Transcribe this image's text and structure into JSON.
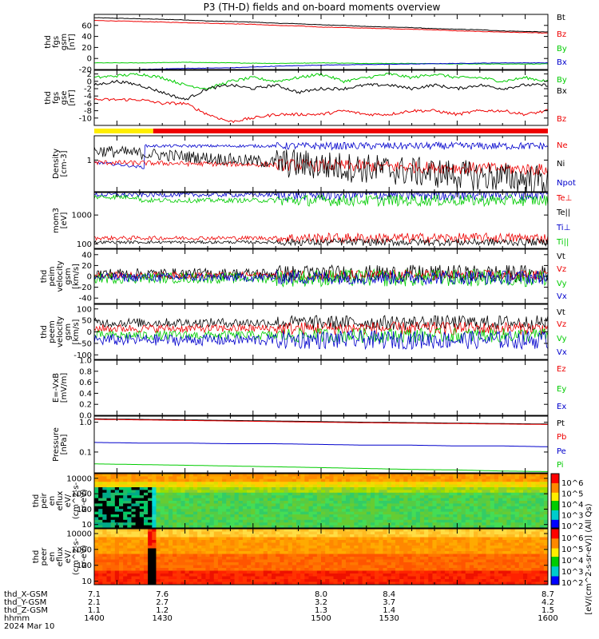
{
  "title": "P3 (TH-D) fields and on-board moments overview",
  "colors": {
    "black": "#000000",
    "red": "#ee0000",
    "green": "#00cc00",
    "blue": "#0000cc",
    "yellow": "#ffee00",
    "barRed": "#ee0000"
  },
  "chart_data": [
    {
      "type": "line",
      "panel": "fgs_gsm",
      "ylabel": [
        "thd",
        "fgs",
        "gsm",
        "[nT]"
      ],
      "ylim": [
        -20,
        80
      ],
      "yticks": [
        "60",
        "40",
        "20",
        "0",
        "-20"
      ],
      "ytick_values": [
        60,
        40,
        20,
        0,
        -20
      ],
      "series": [
        {
          "name": "Bt",
          "color": "#000000",
          "x": [
            1400,
            1410,
            1420,
            1430,
            1440,
            1450,
            1460,
            1470,
            1480,
            1490,
            1500,
            1510,
            1520,
            1530,
            1540,
            1550,
            1560,
            1570,
            1580,
            1590,
            1600
          ],
          "values": [
            74,
            73,
            72,
            71,
            70,
            68,
            67,
            66,
            64,
            63,
            61,
            60,
            58,
            57,
            56,
            54,
            53,
            52,
            50,
            49,
            48
          ]
        },
        {
          "name": "Bz",
          "color": "#ee0000",
          "x": [
            1400,
            1410,
            1420,
            1430,
            1440,
            1450,
            1460,
            1470,
            1480,
            1490,
            1500,
            1510,
            1520,
            1530,
            1540,
            1550,
            1560,
            1570,
            1580,
            1590,
            1600
          ],
          "values": [
            69,
            68,
            67,
            66,
            65,
            64,
            63,
            62,
            60,
            59,
            57,
            56,
            55,
            54,
            53,
            52,
            50,
            49,
            48,
            47,
            46
          ]
        },
        {
          "name": "By",
          "color": "#00cc00",
          "x": [
            1400,
            1420,
            1440,
            1460,
            1480,
            1500,
            1520,
            1540,
            1560,
            1580,
            1600
          ],
          "values": [
            -8,
            -8,
            -7,
            -8,
            -9,
            -8,
            -9,
            -9,
            -10,
            -10,
            -10
          ]
        },
        {
          "name": "Bx",
          "color": "#0000cc",
          "x": [
            1400,
            1420,
            1440,
            1460,
            1480,
            1500,
            1520,
            1540,
            1560,
            1580,
            1600
          ],
          "values": [
            -21,
            -20,
            -18,
            -17,
            -14,
            -12,
            -11,
            -10,
            -9,
            -8,
            -8
          ]
        }
      ]
    },
    {
      "type": "line",
      "panel": "fgs_gse",
      "ylabel": [
        "thd",
        "fgs",
        "gse",
        "[nT]"
      ],
      "ylim": [
        -12,
        3
      ],
      "yticks": [
        "2",
        "0",
        "-2",
        "-4",
        "-6",
        "-8",
        "-10"
      ],
      "ytick_values": [
        2,
        0,
        -2,
        -4,
        -6,
        -8,
        -10
      ],
      "series": [
        {
          "name": "By",
          "color": "#00cc00",
          "x": [
            1400,
            1410,
            1420,
            1430,
            1440,
            1450,
            1460,
            1470,
            1480,
            1490,
            1500,
            1510,
            1520,
            1530,
            1540,
            1550,
            1560,
            1570,
            1580,
            1590,
            1600
          ],
          "values": [
            1,
            1.5,
            2,
            1,
            -1,
            -2,
            0,
            1,
            0,
            1,
            2,
            0,
            1,
            2,
            1,
            2,
            1,
            1,
            0,
            1,
            0
          ]
        },
        {
          "name": "Bx",
          "color": "#000000",
          "x": [
            1400,
            1410,
            1420,
            1430,
            1440,
            1450,
            1460,
            1470,
            1480,
            1490,
            1500,
            1510,
            1520,
            1530,
            1540,
            1550,
            1560,
            1570,
            1580,
            1590,
            1600
          ],
          "values": [
            -1,
            0,
            -1,
            -3,
            -5,
            -2,
            -1,
            -2,
            -1,
            -3,
            -2,
            -2,
            -1,
            -1,
            -2,
            -1,
            -2,
            -1,
            -2,
            -1,
            -1
          ]
        },
        {
          "name": "Bz",
          "color": "#ee0000",
          "x": [
            1400,
            1410,
            1420,
            1430,
            1440,
            1450,
            1460,
            1470,
            1480,
            1490,
            1500,
            1510,
            1520,
            1530,
            1540,
            1550,
            1560,
            1570,
            1580,
            1590,
            1600
          ],
          "values": [
            -5,
            -5,
            -5,
            -6,
            -6,
            -9,
            -11,
            -10,
            -9,
            -9,
            -9,
            -8,
            -9,
            -9,
            -8,
            -8,
            -9,
            -8,
            -8,
            -9,
            -8
          ]
        }
      ]
    },
    {
      "type": "line",
      "panel": "density",
      "ylabel": [
        "Density",
        "[cm-3]"
      ],
      "yscale": "log",
      "yticks": [
        "1"
      ],
      "ytick_values": [
        1
      ],
      "series": [
        {
          "name": "Ne",
          "color": "#ee0000"
        },
        {
          "name": "Ni",
          "color": "#000000"
        },
        {
          "name": "Npot",
          "color": "#0000cc"
        }
      ]
    },
    {
      "type": "line",
      "panel": "temperature",
      "ylabel": [
        "mom3",
        "[eV]"
      ],
      "yscale": "log",
      "yticks": [
        "1000",
        "100"
      ],
      "ytick_values": [
        1000,
        100
      ],
      "series": [
        {
          "name": "Te⊥",
          "color": "#ee0000"
        },
        {
          "name": "Te||",
          "color": "#000000"
        },
        {
          "name": "Ti⊥",
          "color": "#0000cc"
        },
        {
          "name": "Ti||",
          "color": "#00cc00"
        }
      ]
    },
    {
      "type": "line",
      "panel": "peim_velocity",
      "ylabel": [
        "thd",
        "peim",
        "velocity",
        "gsm",
        "[km/s]"
      ],
      "ylim": [
        -50,
        50
      ],
      "yticks": [
        "40",
        "20",
        "0",
        "-20",
        "-40"
      ],
      "ytick_values": [
        40,
        20,
        0,
        -20,
        -40
      ],
      "series": [
        {
          "name": "Vt",
          "color": "#000000"
        },
        {
          "name": "Vz",
          "color": "#ee0000"
        },
        {
          "name": "Vy",
          "color": "#00cc00"
        },
        {
          "name": "Vx",
          "color": "#0000cc"
        }
      ]
    },
    {
      "type": "line",
      "panel": "peem_velocity",
      "ylabel": [
        "thd",
        "peem",
        "velocity",
        "gsm",
        "[km/s]"
      ],
      "ylim": [
        -120,
        120
      ],
      "yticks": [
        "100",
        "50",
        "0",
        "-50",
        "-100"
      ],
      "ytick_values": [
        100,
        50,
        0,
        -50,
        -100
      ],
      "series": [
        {
          "name": "Vt",
          "color": "#000000"
        },
        {
          "name": "Vz",
          "color": "#ee0000"
        },
        {
          "name": "Vy",
          "color": "#00cc00"
        },
        {
          "name": "Vx",
          "color": "#0000cc"
        }
      ]
    },
    {
      "type": "line",
      "panel": "efield",
      "ylabel": [
        "E=-VxB",
        "[mV/m]"
      ],
      "ylim": [
        0,
        1
      ],
      "yticks": [
        "1.0",
        "0.8",
        "0.6",
        "0.4",
        "0.2",
        "0.0"
      ],
      "ytick_values": [
        1,
        0.8,
        0.6,
        0.4,
        0.2,
        0
      ],
      "series": [
        {
          "name": "Ez",
          "color": "#ee0000"
        },
        {
          "name": "Ey",
          "color": "#00cc00"
        },
        {
          "name": "Ex",
          "color": "#0000cc"
        }
      ]
    },
    {
      "type": "line",
      "panel": "pressure",
      "ylabel": [
        "Pressure",
        "[nPa]"
      ],
      "yscale": "log",
      "yticks": [
        "1.0",
        "0.1"
      ],
      "ytick_values": [
        1,
        0.1
      ],
      "series": [
        {
          "name": "Pt",
          "color": "#000000",
          "x": [
            1400,
            1420,
            1440,
            1460,
            1480,
            1500,
            1520,
            1540,
            1560,
            1580,
            1600
          ],
          "values": [
            1.3,
            1.25,
            1.2,
            1.15,
            1.1,
            1.05,
            1.0,
            0.97,
            0.93,
            0.9,
            0.87
          ]
        },
        {
          "name": "Pb",
          "color": "#ee0000",
          "x": [
            1400,
            1420,
            1440,
            1460,
            1480,
            1500,
            1520,
            1540,
            1560,
            1580,
            1600
          ],
          "values": [
            1.25,
            1.2,
            1.15,
            1.1,
            1.05,
            1.0,
            0.96,
            0.93,
            0.9,
            0.87,
            0.84
          ]
        },
        {
          "name": "Pe",
          "color": "#0000cc",
          "x": [
            1400,
            1420,
            1440,
            1460,
            1480,
            1500,
            1520,
            1540,
            1560,
            1580,
            1600
          ],
          "values": [
            0.21,
            0.2,
            0.2,
            0.19,
            0.19,
            0.18,
            0.17,
            0.17,
            0.16,
            0.16,
            0.15
          ]
        },
        {
          "name": "Pi",
          "color": "#00cc00",
          "x": [
            1400,
            1420,
            1440,
            1460,
            1480,
            1500,
            1520,
            1540,
            1560,
            1580,
            1600
          ],
          "values": [
            0.04,
            0.038,
            0.036,
            0.034,
            0.032,
            0.03,
            0.028,
            0.026,
            0.025,
            0.023,
            0.022
          ]
        }
      ]
    },
    {
      "type": "heatmap",
      "panel": "peir_en_eflux",
      "ylabel": [
        "thd",
        "peir",
        "en",
        "eflux",
        "eV/",
        "(cm^2-s-",
        "sr-eV)"
      ],
      "yticks": [
        "10000",
        "1000",
        "100",
        "10"
      ],
      "ytick_values": [
        10000,
        1000,
        100,
        10
      ]
    },
    {
      "type": "heatmap",
      "panel": "peer_en_eflux",
      "ylabel": [
        "thd",
        "peer",
        "en",
        "eflux",
        "eV/",
        "(cm^2-s-",
        "sr-eV)"
      ],
      "yticks": [
        "10000",
        "1000",
        "100",
        "10"
      ],
      "ytick_values": [
        10000,
        1000,
        100,
        10
      ]
    }
  ],
  "colorbar": {
    "label": "[eV/(cm^2-s-sr-eV)] (All Qs)",
    "ticks_top": [
      "10^6",
      "10^5",
      "10^4",
      "10^3",
      "10^2"
    ],
    "ticks_bottom": [
      "10^6",
      "10^5",
      "10^4",
      "10^3",
      "10^2"
    ]
  },
  "xaxis": {
    "rows": [
      {
        "label": "thd_X-GSM",
        "values": [
          "7.1",
          "7.6",
          "8.0",
          "8.4",
          "8.7"
        ]
      },
      {
        "label": "thd_Y-GSM",
        "values": [
          "2.1",
          "2.7",
          "3.2",
          "3.7",
          "4.2"
        ]
      },
      {
        "label": "thd_Z-GSM",
        "values": [
          "1.1",
          "1.2",
          "1.3",
          "1.4",
          "1.5"
        ]
      },
      {
        "label": "hhmm",
        "values": [
          "1400",
          "1430",
          "1500",
          "1530",
          "1600"
        ]
      }
    ],
    "date": "2024 Mar 10"
  },
  "mode_bar": {
    "segments": [
      {
        "color": "yellow",
        "from": 1400,
        "to": 1426
      },
      {
        "color": "red",
        "from": 1426,
        "to": 1600
      }
    ]
  }
}
